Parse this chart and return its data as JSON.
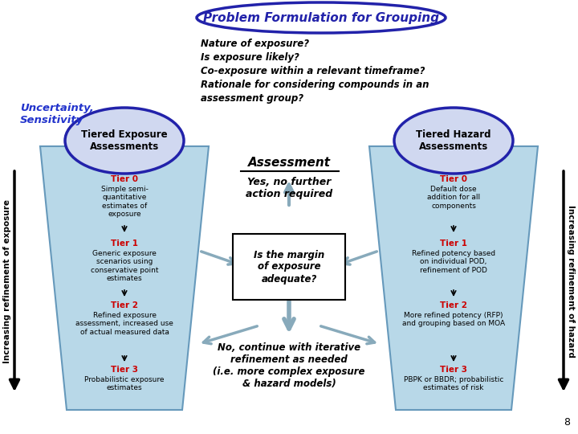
{
  "title": "Problem Formulation for Grouping",
  "title_color": "#2222aa",
  "questions": [
    "Nature of exposure?",
    "Is exposure likely?",
    "Co-exposure within a relevant timeframe?",
    "Rationale for considering compounds in an",
    "assessment group?"
  ],
  "uncertainty_text": "Uncertainty,\nSensitivity",
  "assessment_label": "Assessment",
  "left_circle_label": "Tiered Exposure\nAssessments",
  "right_circle_label": "Tiered Hazard\nAssessments",
  "left_arrow_label": "Increasing refinement of exposure",
  "right_arrow_label": "Increasing refinement of hazard",
  "yes_text": "Yes, no further\naction required",
  "margin_text": "Is the margin\nof exposure\nadequate?",
  "no_text": "No, continue with iterative\nrefinement as needed\n(i.e. more complex exposure\n& hazard models)",
  "tier_color": "#cc0000",
  "trapezoid_fill": "#b8d8e8",
  "trapezoid_edge": "#6699bb",
  "circle_fill": "#d0d8f0",
  "circle_edge": "#2222aa",
  "left_tiers": [
    {
      "label": "Tier 0",
      "text": "Simple semi-\nquantitative\nestimates of\nexposure"
    },
    {
      "label": "Tier 1",
      "text": "Generic exposure\nscenarios using\nconservative point\nestimates"
    },
    {
      "label": "Tier 2",
      "text": "Refined exposure\nassessment, increased use\nof actual measured data"
    },
    {
      "label": "Tier 3",
      "text": "Probabilistic exposure\nestimates"
    }
  ],
  "right_tiers": [
    {
      "label": "Tier 0",
      "text": "Default dose\naddition for all\ncomponents"
    },
    {
      "label": "Tier 1",
      "text": "Refined potency based\non individual POD,\nrefinement of POD"
    },
    {
      "label": "Tier 2",
      "text": "More refined potency (RFP)\nand grouping based on MOA"
    },
    {
      "label": "Tier 3",
      "text": "PBPK or BBDR; probabilistic\nestimates of risk"
    }
  ],
  "page_num": "8"
}
